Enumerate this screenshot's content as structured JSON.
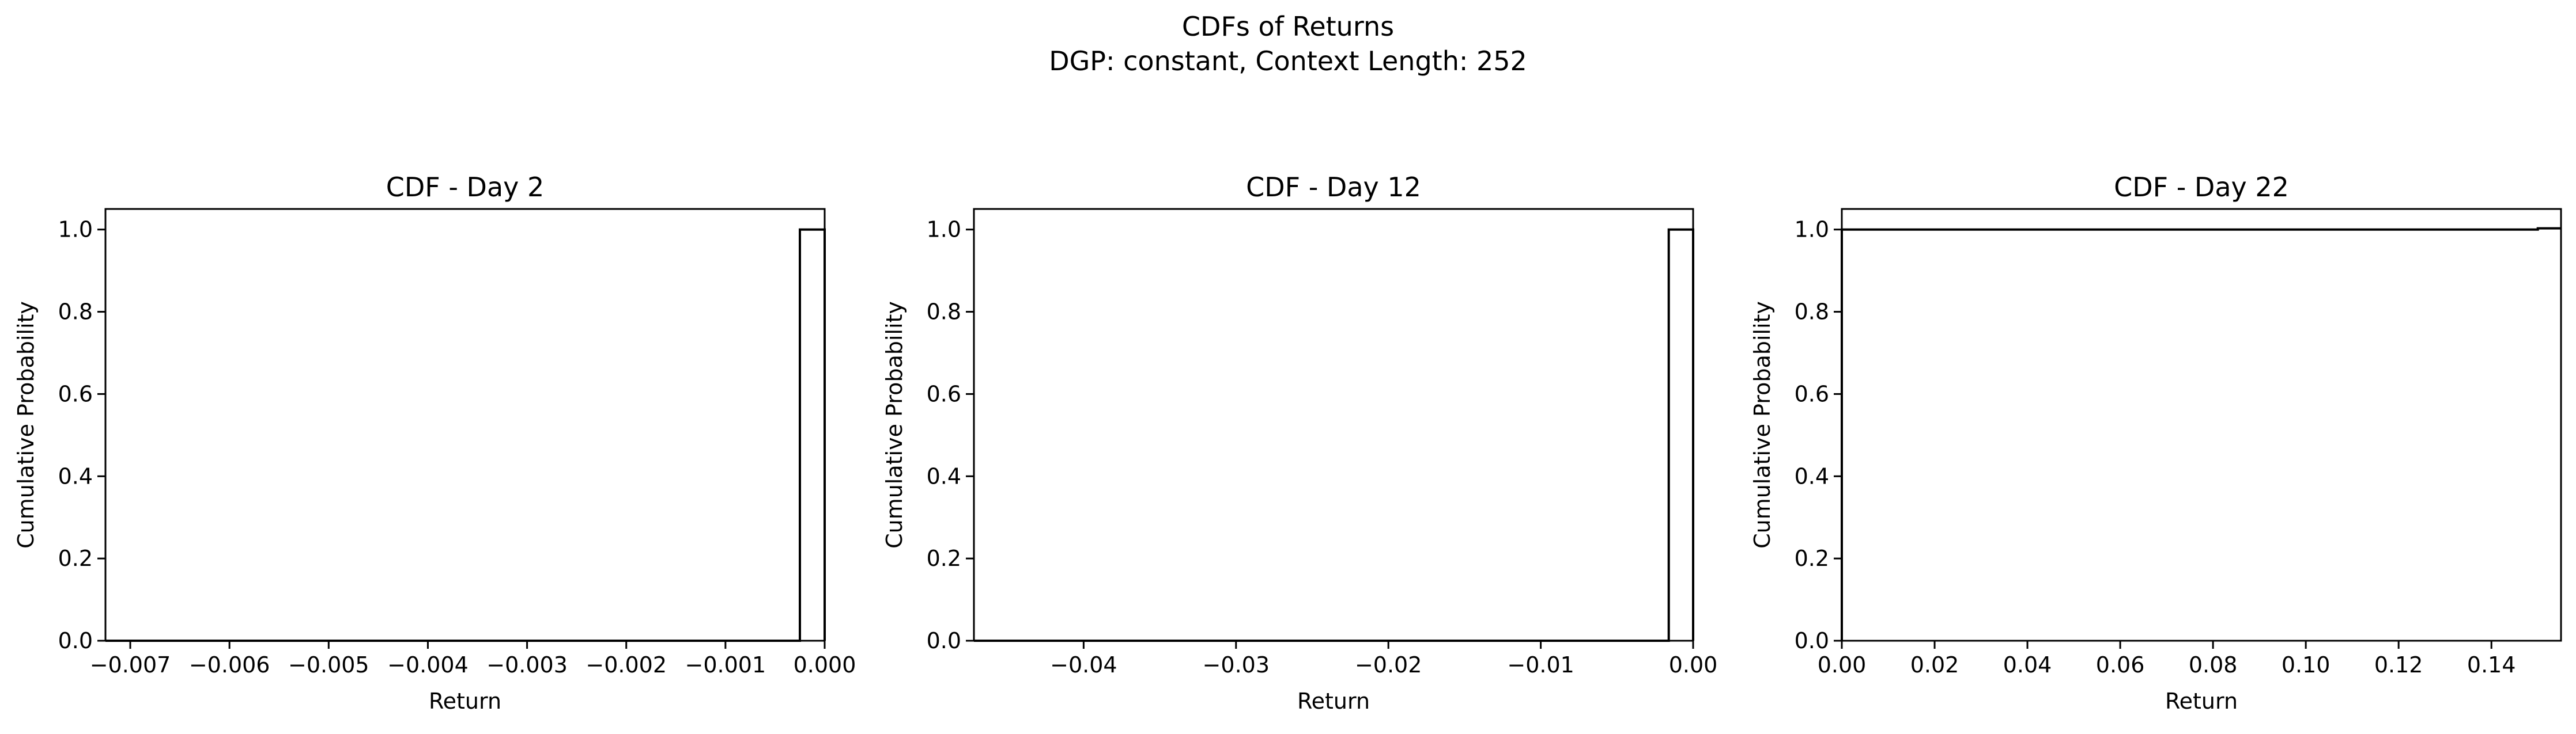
{
  "figure": {
    "title_line1": "CDFs of Returns",
    "title_line2": "DGP: constant, Context Length: 252"
  },
  "chart_data": [
    {
      "type": "line",
      "title": "CDF - Day 2",
      "xlabel": "Return",
      "ylabel": "Cumulative Probability",
      "xlim": [
        -0.00725,
        0.0
      ],
      "ylim": [
        0.0,
        1.05
      ],
      "xticks": [
        -0.007,
        -0.006,
        -0.005,
        -0.004,
        -0.003,
        -0.002,
        -0.001,
        0.0
      ],
      "xtick_labels": [
        "−0.007",
        "−0.006",
        "−0.005",
        "−0.004",
        "−0.003",
        "−0.002",
        "−0.001",
        "0.000"
      ],
      "yticks": [
        0.0,
        0.2,
        0.4,
        0.6,
        0.8,
        1.0
      ],
      "ytick_labels": [
        "0.0",
        "0.2",
        "0.4",
        "0.6",
        "0.8",
        "1.0"
      ],
      "grid": false,
      "series": [
        {
          "x": [
            -0.00725,
            -0.00025,
            -0.00025,
            0.0,
            0.0
          ],
          "y": [
            0.0,
            0.0,
            1.0,
            1.0,
            0.0
          ]
        }
      ]
    },
    {
      "type": "line",
      "title": "CDF - Day 12",
      "xlabel": "Return",
      "ylabel": "Cumulative Probability",
      "xlim": [
        -0.0472,
        0.0
      ],
      "ylim": [
        0.0,
        1.05
      ],
      "xticks": [
        -0.04,
        -0.03,
        -0.02,
        -0.01,
        0.0
      ],
      "xtick_labels": [
        "−0.04",
        "−0.03",
        "−0.02",
        "−0.01",
        "0.00"
      ],
      "yticks": [
        0.0,
        0.2,
        0.4,
        0.6,
        0.8,
        1.0
      ],
      "ytick_labels": [
        "0.0",
        "0.2",
        "0.4",
        "0.6",
        "0.8",
        "1.0"
      ],
      "grid": false,
      "series": [
        {
          "x": [
            -0.0472,
            -0.0016,
            -0.0016,
            0.0,
            0.0
          ],
          "y": [
            0.0,
            0.0,
            1.0,
            1.0,
            0.0
          ]
        }
      ]
    },
    {
      "type": "line",
      "title": "CDF - Day 22",
      "xlabel": "Return",
      "ylabel": "Cumulative Probability",
      "xlim": [
        0.0,
        0.155
      ],
      "ylim": [
        0.0,
        1.05
      ],
      "xticks": [
        0.0,
        0.02,
        0.04,
        0.06,
        0.08,
        0.1,
        0.12,
        0.14
      ],
      "xtick_labels": [
        "0.00",
        "0.02",
        "0.04",
        "0.06",
        "0.08",
        "0.10",
        "0.12",
        "0.14"
      ],
      "yticks": [
        0.0,
        0.2,
        0.4,
        0.6,
        0.8,
        1.0
      ],
      "ytick_labels": [
        "0.0",
        "0.2",
        "0.4",
        "0.6",
        "0.8",
        "1.0"
      ],
      "grid": false,
      "series": [
        {
          "x": [
            0.0,
            0.0,
            0.15,
            0.15,
            0.155
          ],
          "y": [
            0.0,
            1.0,
            1.0,
            1.003,
            1.003
          ]
        }
      ]
    }
  ]
}
